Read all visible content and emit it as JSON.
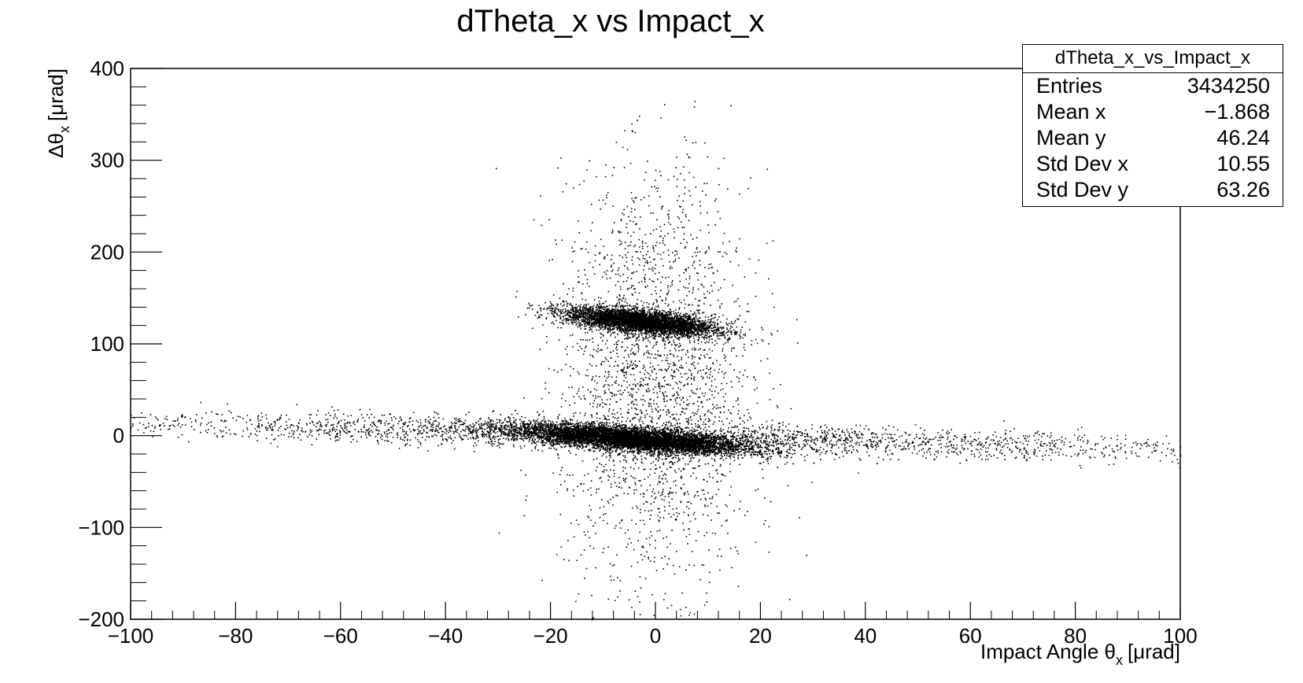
{
  "chart_data": {
    "type": "scatter",
    "title": "dTheta_x vs Impact_x",
    "xlabel": "Impact Angle",
    "xlabel_symbol": "θ",
    "xlabel_sub": "x",
    "xlabel_unit": "[μrad]",
    "ylabel": "Δθ",
    "ylabel_sub": "x",
    "ylabel_unit": "[μrad]",
    "xlim": [
      -100,
      100
    ],
    "ylim": [
      -200,
      400
    ],
    "x_ticks": [
      -100,
      -80,
      -60,
      -40,
      -20,
      0,
      20,
      40,
      60,
      80,
      100
    ],
    "x_tick_labels": [
      "−100",
      "−80",
      "−60",
      "−40",
      "−20",
      "0",
      "20",
      "40",
      "60",
      "80",
      "100"
    ],
    "y_ticks": [
      -200,
      -100,
      0,
      100,
      200,
      300,
      400
    ],
    "y_tick_labels": [
      "−200",
      "−100",
      "0",
      "100",
      "200",
      "300",
      "400"
    ],
    "grid": false,
    "marker_color": "#000000",
    "clusters": [
      {
        "center": [
          -5,
          -3
        ],
        "spread": [
          11,
          6
        ],
        "tilt": -0.45,
        "note": "dense lower band"
      },
      {
        "center": [
          -3,
          125
        ],
        "spread": [
          7,
          6
        ],
        "tilt": -0.6,
        "note": "dense upper band"
      },
      {
        "center": [
          0,
          0
        ],
        "spread": [
          55,
          8
        ],
        "tilt": -0.15,
        "note": "sparse horizontal tail"
      },
      {
        "center": [
          0,
          60
        ],
        "spread": [
          9,
          110
        ],
        "tilt": 0,
        "note": "sparse vertical spread"
      }
    ],
    "stats": {
      "name": "dTheta_x_vs_Impact_x",
      "rows": [
        {
          "label": "Entries",
          "value": "3434250"
        },
        {
          "label": "Mean x",
          "value": "−1.868"
        },
        {
          "label": "Mean y",
          "value": "46.24"
        },
        {
          "label": "Std Dev x",
          "value": "10.55"
        },
        {
          "label": "Std Dev y",
          "value": "63.26"
        }
      ]
    }
  }
}
